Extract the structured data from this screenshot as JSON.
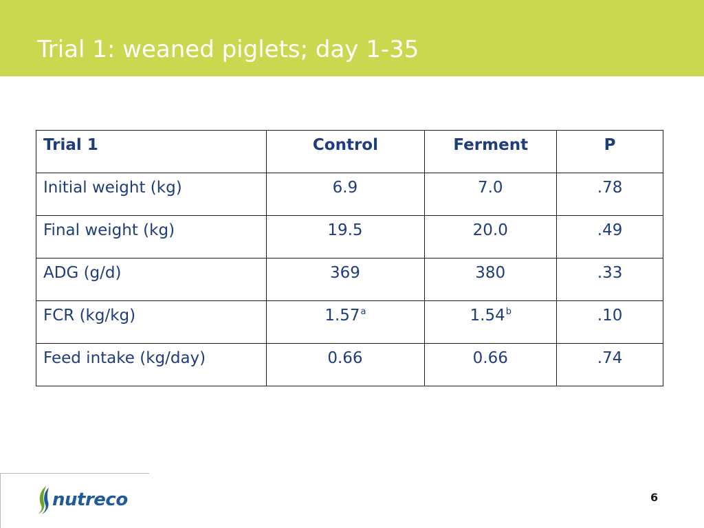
{
  "slide": {
    "title": "Trial 1: weaned piglets; day 1-35",
    "page_number": "6",
    "colors": {
      "header": "#c9d84f",
      "text": "#1f3d7a",
      "logo_blue": "#1f5a9a",
      "logo_green": "#6aa52a"
    }
  },
  "table": {
    "headers": [
      "Trial 1",
      "Control",
      "Ferment",
      "P"
    ],
    "rows": [
      {
        "label": "Initial weight (kg)",
        "control": "6.9",
        "control_sup": "",
        "ferment": "7.0",
        "ferment_sup": "",
        "p": ".78"
      },
      {
        "label": "Final weight (kg)",
        "control": "19.5",
        "control_sup": "",
        "ferment": "20.0",
        "ferment_sup": "",
        "p": ".49"
      },
      {
        "label": "ADG (g/d)",
        "control": "369",
        "control_sup": "",
        "ferment": "380",
        "ferment_sup": "",
        "p": ".33"
      },
      {
        "label": "FCR (kg/kg)",
        "control": "1.57",
        "control_sup": "a",
        "ferment": "1.54",
        "ferment_sup": "b",
        "p": ".10"
      },
      {
        "label": "Feed intake (kg/day)",
        "control": "0.66",
        "control_sup": "",
        "ferment": "0.66",
        "ferment_sup": "",
        "p": ".74"
      }
    ]
  },
  "logo": {
    "text": "nutreco",
    "icon": "nutreco-leaf-icon"
  }
}
